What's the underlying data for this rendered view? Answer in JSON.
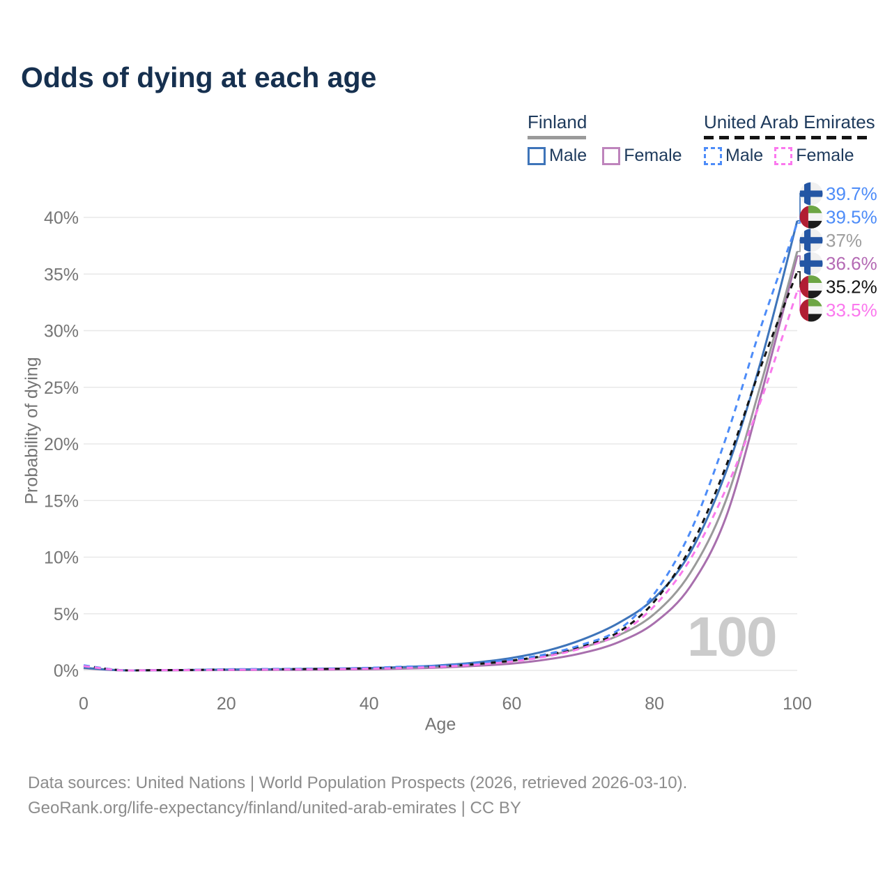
{
  "title": "Odds of dying at each age",
  "legend": {
    "groups": [
      {
        "name": "Finland",
        "line_style": "solid",
        "underline_color": "#9a9a9a",
        "items": [
          {
            "label": "Male",
            "color": "#3e74b9"
          },
          {
            "label": "Female",
            "color": "#be84bc"
          }
        ]
      },
      {
        "name": "United Arab Emirates",
        "line_style": "dashed",
        "underline_color": "#141414",
        "items": [
          {
            "label": "Male",
            "color": "#4d8cf8"
          },
          {
            "label": "Female",
            "color": "#fb78ee"
          }
        ]
      }
    ]
  },
  "hover": {
    "age_label": "100"
  },
  "footer": {
    "line1": "Data sources: United Nations | World Population Prospects (2026, retrieved 2026-03-10).",
    "line2": "GeoRank.org/life-expectancy/finland/united-arab-emirates | CC BY"
  },
  "chart_data": {
    "type": "line",
    "title": "Odds of dying at each age",
    "xlabel": "Age",
    "ylabel": "Probability of dying",
    "xlim": [
      0,
      100
    ],
    "ylim": [
      0,
      40
    ],
    "grid": "horizontal",
    "legend_position": "top-right",
    "x_axis": {
      "tick_values": [
        0,
        20,
        40,
        60,
        80,
        100
      ]
    },
    "y_axis": {
      "tick_values": [
        0,
        5,
        10,
        15,
        20,
        25,
        30,
        35,
        40
      ],
      "tick_labels": [
        "0%",
        "5%",
        "10%",
        "15%",
        "20%",
        "25%",
        "30%",
        "35%",
        "40%"
      ]
    },
    "x": [
      0,
      5,
      10,
      15,
      20,
      25,
      30,
      35,
      40,
      45,
      50,
      55,
      60,
      65,
      70,
      75,
      80,
      85,
      90,
      95,
      100
    ],
    "series": [
      {
        "name": "Finland Male",
        "country": "Finland",
        "flag": "finland",
        "style": "solid",
        "color": "#3e74b9",
        "end_label": "39.7%",
        "end_label_color": "#4d8cf8",
        "values": [
          0.23,
          0.02,
          0.01,
          0.04,
          0.08,
          0.1,
          0.12,
          0.15,
          0.2,
          0.3,
          0.45,
          0.7,
          1.1,
          1.75,
          2.75,
          4.2,
          6.4,
          10.4,
          17.5,
          27.5,
          39.7
        ]
      },
      {
        "name": "United Arab Emirates Male",
        "country": "United Arab Emirates",
        "flag": "uae",
        "style": "dashed",
        "color": "#4d8cf8",
        "end_label": "39.5%",
        "end_label_color": "#4d8cf8",
        "values": [
          0.45,
          0.03,
          0.02,
          0.05,
          0.1,
          0.12,
          0.14,
          0.17,
          0.23,
          0.33,
          0.4,
          0.62,
          0.95,
          1.45,
          2.3,
          3.6,
          6.8,
          12.2,
          20.5,
          30.5,
          39.5
        ]
      },
      {
        "name": "Finland Both sexes",
        "country": "Finland",
        "flag": "finland",
        "style": "solid",
        "color": "#9a9a9a",
        "end_label": "37%",
        "end_label_color": "#9e9e9e",
        "values": [
          0.21,
          0.02,
          0.01,
          0.03,
          0.06,
          0.07,
          0.09,
          0.11,
          0.15,
          0.23,
          0.33,
          0.52,
          0.82,
          1.3,
          2.05,
          3.1,
          5.0,
          8.6,
          15.0,
          25.5,
          37.0
        ]
      },
      {
        "name": "Finland Female",
        "country": "Finland",
        "flag": "finland",
        "style": "solid",
        "color": "#a86fad",
        "end_label": "36.6%",
        "end_label_color": "#b46ab4",
        "values": [
          0.19,
          0.01,
          0.01,
          0.02,
          0.03,
          0.04,
          0.05,
          0.07,
          0.1,
          0.16,
          0.25,
          0.4,
          0.6,
          0.97,
          1.55,
          2.5,
          4.2,
          7.4,
          13.5,
          24.5,
          36.6
        ]
      },
      {
        "name": "United Arab Emirates Both sexes",
        "country": "United Arab Emirates",
        "flag": "uae",
        "style": "dashed",
        "color": "#141414",
        "end_label": "35.2%",
        "end_label_color": "#141414",
        "values": [
          0.42,
          0.03,
          0.02,
          0.04,
          0.08,
          0.1,
          0.12,
          0.14,
          0.19,
          0.28,
          0.36,
          0.56,
          0.87,
          1.35,
          2.15,
          3.4,
          6.1,
          10.8,
          18.0,
          27.0,
          35.2
        ]
      },
      {
        "name": "United Arab Emirates Female",
        "country": "United Arab Emirates",
        "flag": "uae",
        "style": "dashed",
        "color": "#f97aec",
        "end_label": "33.5%",
        "end_label_color": "#fb78ee",
        "values": [
          0.38,
          0.02,
          0.02,
          0.03,
          0.05,
          0.07,
          0.09,
          0.11,
          0.15,
          0.22,
          0.32,
          0.5,
          0.78,
          1.25,
          2.0,
          3.2,
          5.7,
          9.8,
          16.0,
          24.0,
          33.5
        ]
      }
    ]
  }
}
